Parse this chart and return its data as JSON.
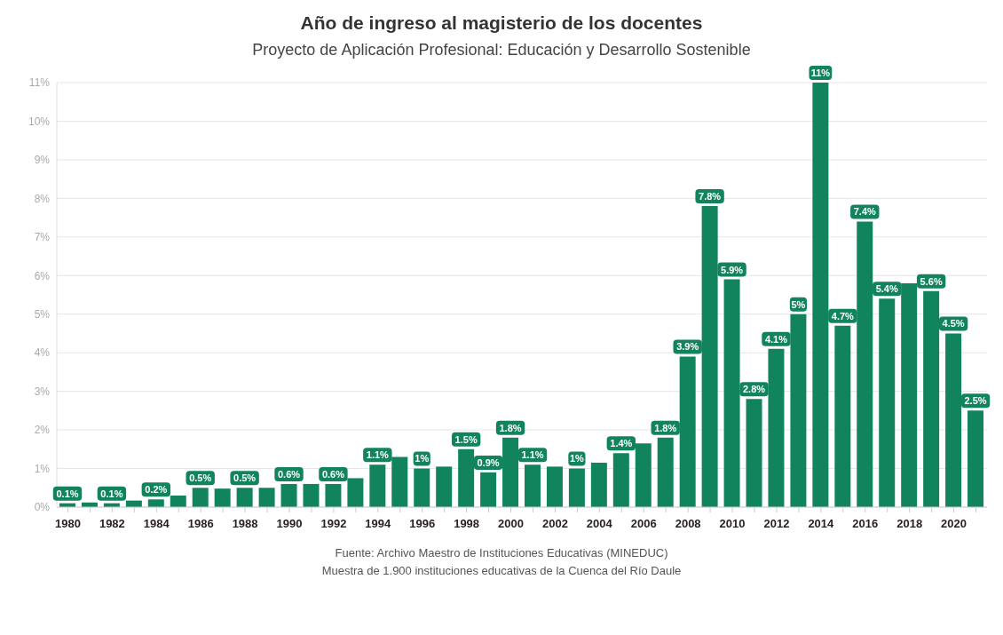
{
  "chart_data": {
    "type": "bar",
    "title": "Año de ingreso al magisterio de los docentes",
    "subtitle": "Proyecto de Aplicación Profesional: Educación y Desarrollo Sostenible",
    "categories": [
      "1980",
      null,
      "1982",
      null,
      "1984",
      null,
      "1986",
      null,
      "1988",
      null,
      "1990",
      null,
      "1992",
      null,
      "1994",
      null,
      "1996",
      null,
      "1998",
      null,
      "2000",
      null,
      "2002",
      null,
      "2004",
      null,
      "2006",
      null,
      "2008",
      null,
      "2010",
      null,
      "2012",
      null,
      "2014",
      null,
      "2016",
      null,
      "2018",
      null,
      "2020",
      null
    ],
    "values": [
      0.1,
      0.12,
      0.1,
      0.17,
      0.2,
      0.3,
      0.5,
      0.48,
      0.5,
      0.5,
      0.6,
      0.6,
      0.6,
      0.75,
      1.1,
      1.3,
      1,
      1.05,
      1.5,
      0.9,
      1.8,
      1.1,
      1.05,
      1,
      1.15,
      1.4,
      1.65,
      1.8,
      3.9,
      7.8,
      5.9,
      2.8,
      4.1,
      5,
      11,
      4.7,
      7.4,
      5.4,
      5.8,
      5.6,
      4.5,
      2.5
    ],
    "value_labels": [
      "0.1%",
      null,
      "0.1%",
      null,
      "0.2%",
      null,
      "0.5%",
      null,
      "0.5%",
      null,
      "0.6%",
      null,
      "0.6%",
      null,
      "1.1%",
      null,
      "1%",
      null,
      "1.5%",
      "0.9%",
      "1.8%",
      "1.1%",
      null,
      "1%",
      null,
      "1.4%",
      null,
      "1.8%",
      "3.9%",
      "7.8%",
      "5.9%",
      "2.8%",
      "4.1%",
      "5%",
      "11%",
      "4.7%",
      "7.4%",
      "5.4%",
      null,
      "5.6%",
      "4.5%",
      "2.5%"
    ],
    "color": "#11845e",
    "ylim": [
      0,
      11
    ],
    "yticks": [
      {
        "value": 0,
        "label": "0%"
      },
      {
        "value": 1,
        "label": "1%"
      },
      {
        "value": 2,
        "label": "2%"
      },
      {
        "value": 3,
        "label": "3%"
      },
      {
        "value": 4,
        "label": "4%"
      },
      {
        "value": 5,
        "label": "5%"
      },
      {
        "value": 6,
        "label": "6%"
      },
      {
        "value": 7,
        "label": "7%"
      },
      {
        "value": 8,
        "label": "8%"
      },
      {
        "value": 9,
        "label": "9%"
      },
      {
        "value": 10,
        "label": "10%"
      },
      {
        "value": 11,
        "label": "11%"
      }
    ],
    "grid": "y",
    "annotations": [
      "Fuente: Archivo Maestro de Instituciones Educativas (MINEDUC)",
      "Muestra de 1.900 instituciones educativas de la Cuenca del Río Daule"
    ]
  }
}
